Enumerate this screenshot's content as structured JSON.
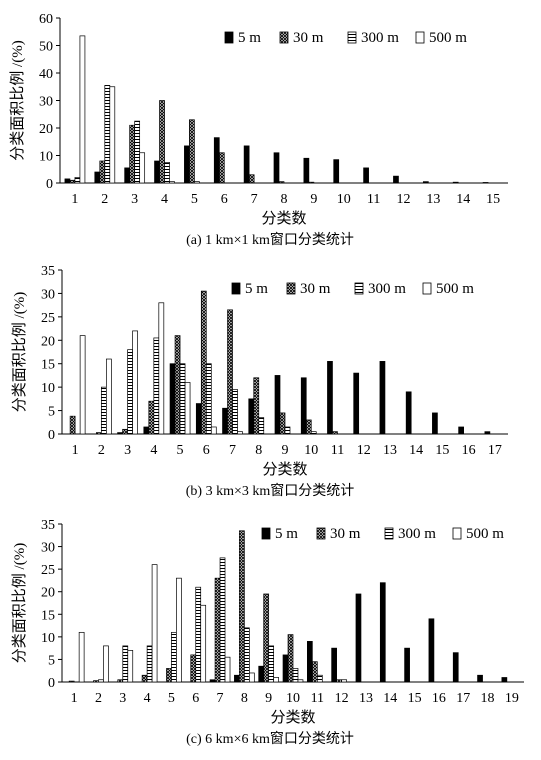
{
  "chart_data": [
    {
      "type": "bar",
      "caption": "(a) 1 km×1 km窗口分类统计",
      "xlabel": "分类数",
      "ylabel": "分类面积比例 /(%)",
      "ylim": [
        0,
        60
      ],
      "yticks": [
        0,
        10,
        20,
        30,
        40,
        50,
        60
      ],
      "grid": false,
      "legend": "top-right",
      "categories": [
        "1",
        "2",
        "3",
        "4",
        "5",
        "6",
        "7",
        "8",
        "9",
        "10",
        "11",
        "12",
        "13",
        "14",
        "15"
      ],
      "series": [
        {
          "name": "5 m",
          "pattern": "solid",
          "values": [
            1.5,
            4,
            5.5,
            8,
            13.5,
            16.5,
            13.5,
            11,
            9,
            8.5,
            5.5,
            2.5,
            0.5,
            0.3,
            0.2
          ]
        },
        {
          "name": "30 m",
          "pattern": "crosshatch",
          "values": [
            1,
            8,
            21,
            30,
            23,
            11,
            3,
            0.5,
            0.3,
            0,
            0,
            0,
            0,
            0,
            0
          ]
        },
        {
          "name": "300 m",
          "pattern": "hlines",
          "values": [
            2,
            35.5,
            22.5,
            7.5,
            0.5,
            0,
            0,
            0,
            0,
            0,
            0,
            0,
            0,
            0,
            0
          ]
        },
        {
          "name": "500 m",
          "pattern": "open",
          "values": [
            53.5,
            35,
            11,
            0.5,
            0,
            0,
            0,
            0,
            0,
            0,
            0,
            0,
            0,
            0,
            0
          ]
        }
      ]
    },
    {
      "type": "bar",
      "caption": "(b) 3 km×3 km窗口分类统计",
      "xlabel": "分类数",
      "ylabel": "分类面积比例 /(%)",
      "ylim": [
        0,
        35
      ],
      "yticks": [
        0,
        5,
        10,
        15,
        20,
        25,
        30,
        35
      ],
      "grid": false,
      "legend": "top-right",
      "categories": [
        "1",
        "2",
        "3",
        "4",
        "5",
        "6",
        "7",
        "8",
        "9",
        "10",
        "11",
        "12",
        "13",
        "14",
        "15",
        "16",
        "17"
      ],
      "series": [
        {
          "name": "5 m",
          "pattern": "solid",
          "values": [
            0,
            0,
            0.3,
            1.5,
            15,
            6.5,
            5.5,
            7.5,
            12.5,
            12,
            15.5,
            13,
            15.5,
            9,
            4.5,
            1.5,
            0.5
          ]
        },
        {
          "name": "30 m",
          "pattern": "crosshatch",
          "values": [
            3.8,
            0.3,
            1,
            7,
            21,
            30.5,
            26.5,
            12,
            4.5,
            3,
            0.5,
            0,
            0,
            0,
            0,
            0,
            0
          ]
        },
        {
          "name": "300 m",
          "pattern": "hlines",
          "values": [
            0,
            10,
            18,
            20.5,
            15,
            15,
            9.5,
            3.5,
            1.5,
            0.5,
            0,
            0,
            0,
            0,
            0,
            0,
            0
          ]
        },
        {
          "name": "500 m",
          "pattern": "open",
          "values": [
            21,
            16,
            22,
            28,
            11,
            1.5,
            0.5,
            0,
            0,
            0,
            0,
            0,
            0,
            0,
            0,
            0,
            0
          ]
        }
      ]
    },
    {
      "type": "bar",
      "caption": "(c) 6 km×6 km窗口分类统计",
      "xlabel": "分类数",
      "ylabel": "分类面积比例 /(%)",
      "ylim": [
        0,
        35
      ],
      "yticks": [
        0,
        5,
        10,
        15,
        20,
        25,
        30,
        35
      ],
      "grid": false,
      "legend": "top-right",
      "categories": [
        "1",
        "2",
        "3",
        "4",
        "5",
        "6",
        "7",
        "8",
        "9",
        "10",
        "11",
        "12",
        "13",
        "14",
        "15",
        "16",
        "17",
        "18",
        "19"
      ],
      "series": [
        {
          "name": "5 m",
          "pattern": "solid",
          "values": [
            0,
            0,
            0,
            0,
            0,
            0,
            0.5,
            1.5,
            3.5,
            6,
            9,
            7.5,
            19.5,
            22,
            7.5,
            14,
            6.5,
            1.5,
            1
          ]
        },
        {
          "name": "30 m",
          "pattern": "crosshatch",
          "values": [
            0.2,
            0.3,
            0.5,
            1.5,
            3,
            6,
            23,
            33.5,
            19.5,
            10.5,
            4.5,
            0.5,
            0,
            0,
            0,
            0,
            0,
            0,
            0
          ]
        },
        {
          "name": "300 m",
          "pattern": "hlines",
          "values": [
            0,
            0.5,
            8,
            8,
            11,
            21,
            27.5,
            12,
            8,
            3,
            1.5,
            0.5,
            0,
            0,
            0,
            0,
            0,
            0,
            0
          ]
        },
        {
          "name": "500 m",
          "pattern": "open",
          "values": [
            11,
            8,
            7,
            26,
            23,
            17,
            5.5,
            2,
            1,
            0.5,
            0,
            0,
            0,
            0,
            0,
            0,
            0,
            0,
            0
          ]
        }
      ]
    }
  ]
}
